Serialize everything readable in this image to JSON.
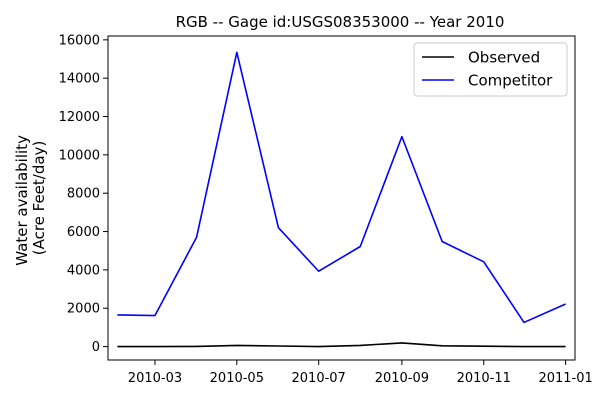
{
  "chart_data": {
    "type": "line",
    "title": "RGB -- Gage id:USGS08353000 -- Year 2010",
    "xlabel": "",
    "ylabel": [
      "Water availability",
      "(Acre Feet/day)"
    ],
    "x": [
      "2010-02-01",
      "2010-03-01",
      "2010-04-01",
      "2010-05-01",
      "2010-06-01",
      "2010-07-01",
      "2010-08-01",
      "2010-09-01",
      "2010-10-01",
      "2010-11-01",
      "2010-12-01",
      "2011-01-01"
    ],
    "x_ticks": [
      "2010-03",
      "2010-05",
      "2010-07",
      "2010-09",
      "2010-11",
      "2011-01"
    ],
    "ylim": [
      -700,
      16200
    ],
    "y_ticks": [
      0,
      2000,
      4000,
      6000,
      8000,
      10000,
      12000,
      14000,
      16000
    ],
    "grid": false,
    "legend_position": "top-right",
    "series": [
      {
        "name": "Observed",
        "color": "#000000",
        "values": [
          0,
          0,
          10,
          60,
          30,
          0,
          60,
          190,
          40,
          20,
          0,
          0
        ]
      },
      {
        "name": "Competitor",
        "color": "#0000ff",
        "values": [
          1650,
          1620,
          5700,
          15350,
          6200,
          3930,
          5220,
          10950,
          5480,
          4420,
          1260,
          2220
        ]
      }
    ]
  }
}
